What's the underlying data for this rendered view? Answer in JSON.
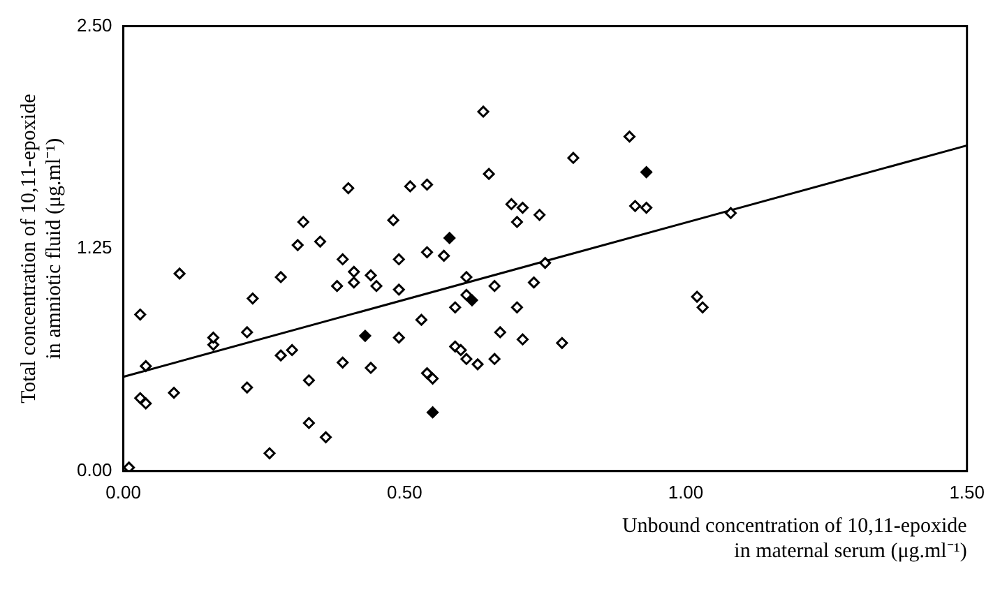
{
  "chart_data": {
    "type": "scatter",
    "xlabel": "Unbound concentration of 10,11-epoxide\nin maternal serum (μg.ml⁻¹)",
    "ylabel": "Total concentration of 10,11-epoxide\nin amniotic fluid (μg.ml⁻¹)",
    "xlim": [
      0,
      1.5
    ],
    "ylim": [
      0,
      2.5
    ],
    "xticks": [
      {
        "value": 0,
        "label": "0.00"
      },
      {
        "value": 0.5,
        "label": "0.50"
      },
      {
        "value": 1,
        "label": "1.00"
      },
      {
        "value": 1.5,
        "label": "1.50"
      }
    ],
    "yticks": [
      {
        "value": 0,
        "label": "0.00"
      },
      {
        "value": 1.25,
        "label": "1.25"
      },
      {
        "value": 2.5,
        "label": "2.50"
      }
    ],
    "grid": false,
    "legend": false,
    "marker": "diamond",
    "series": [
      {
        "color": "#000000",
        "x": [
          0.01,
          0.03,
          0.04,
          0.03,
          0.04,
          0.09,
          0.1,
          0.16,
          0.16,
          0.22,
          0.23,
          0.22,
          0.26,
          0.28,
          0.3,
          0.33,
          0.33,
          0.36,
          0.28,
          0.31,
          0.35,
          0.32,
          0.39,
          0.44,
          0.49,
          0.53,
          0.54,
          0.55,
          0.59,
          0.59,
          0.6,
          0.61,
          0.63,
          0.66,
          0.61,
          0.67,
          0.71,
          0.7,
          0.66,
          0.73,
          0.38,
          0.41,
          0.41,
          0.44,
          0.45,
          0.49,
          0.61,
          0.39,
          0.4,
          0.49,
          0.54,
          0.57,
          0.51,
          0.54,
          0.48,
          0.64,
          0.65,
          0.69,
          0.71,
          0.7,
          0.74,
          0.75,
          0.78,
          0.9,
          0.8,
          0.91,
          0.93,
          1.08,
          1.02,
          1.03
        ],
        "values": [
          0.02,
          0.88,
          0.59,
          0.41,
          0.38,
          0.44,
          1.11,
          0.71,
          0.75,
          0.78,
          0.97,
          0.47,
          0.1,
          0.65,
          0.68,
          0.51,
          0.27,
          0.19,
          1.09,
          1.27,
          1.29,
          1.4,
          0.61,
          0.58,
          0.75,
          0.85,
          0.55,
          0.52,
          0.92,
          0.7,
          0.68,
          0.63,
          0.6,
          0.63,
          0.99,
          0.78,
          0.74,
          0.92,
          1.04,
          1.06,
          1.04,
          1.06,
          1.12,
          1.1,
          1.04,
          1.02,
          1.09,
          1.19,
          1.59,
          1.19,
          1.23,
          1.21,
          1.6,
          1.61,
          1.41,
          2.02,
          1.67,
          1.5,
          1.48,
          1.4,
          1.44,
          1.17,
          0.72,
          1.88,
          1.76,
          1.49,
          1.48,
          1.45,
          0.98,
          0.92
        ]
      },
      {
        "color": "#000000",
        "x": [
          0.43,
          0.55,
          0.62,
          0.58,
          0.93
        ],
        "values": [
          0.76,
          0.33,
          0.96,
          1.31,
          1.68
        ]
      },
      {
        "type": "line",
        "color": "#000000",
        "x": [
          0,
          1.5
        ],
        "values": [
          0.53,
          1.83
        ],
        "marker": "none",
        "line_style": "solid"
      }
    ]
  }
}
